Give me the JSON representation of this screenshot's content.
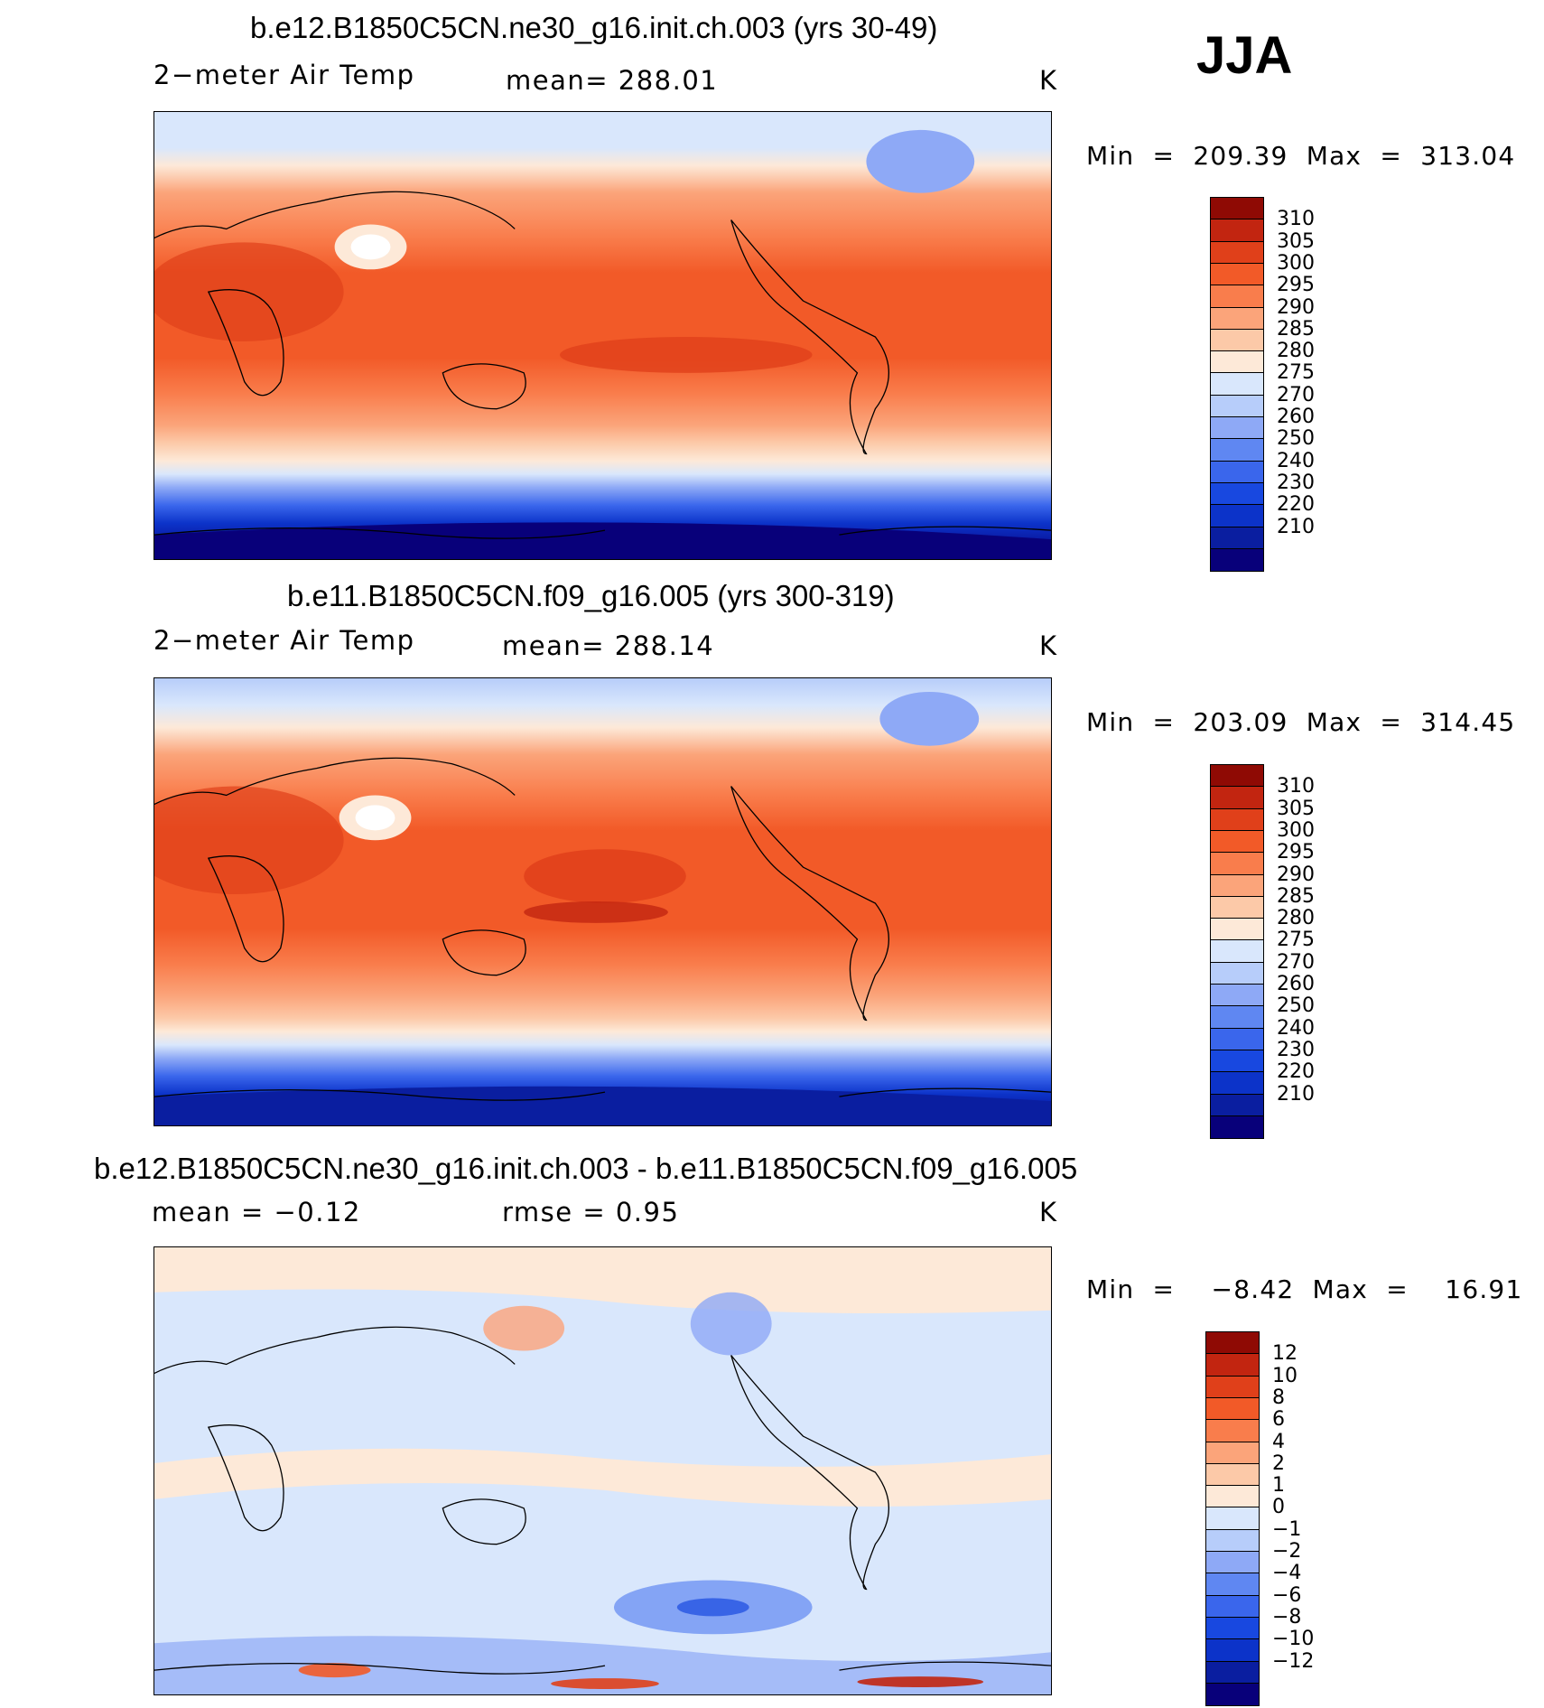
{
  "season_label": "JJA",
  "units": "K",
  "colors": {
    "temp_palette": [
      "#08007a",
      "#0a1ea0",
      "#0c33c9",
      "#1848e0",
      "#3a66ec",
      "#5f87f2",
      "#8ea9f6",
      "#b7cdfa",
      "#d9e7fc",
      "#fde9d8",
      "#fcc9a8",
      "#fba47a",
      "#f97d4c",
      "#f25a28",
      "#e0401a",
      "#c22510",
      "#8f0a04"
    ],
    "diff_palette": [
      "#08007a",
      "#0a1ea0",
      "#0c33c9",
      "#1848e0",
      "#3a66ec",
      "#5f87f2",
      "#8ea9f6",
      "#b7cdfa",
      "#d9e7fc",
      "#fde9d8",
      "#fcc9a8",
      "#fba47a",
      "#f97d4c",
      "#f25a28",
      "#e0401a",
      "#c22510",
      "#8f0a04"
    ]
  },
  "panels": [
    {
      "title": "b.e12.B1850C5CN.ne30_g16.init.ch.003 (yrs 30-49)",
      "left_label": "2−meter Air Temp",
      "center_label": "mean=  288.01",
      "right_label": "K",
      "minmax": "Min  =  209.39  Max  =  313.04",
      "colorbar_levels": [
        "310",
        "305",
        "300",
        "295",
        "290",
        "285",
        "280",
        "275",
        "270",
        "260",
        "250",
        "240",
        "230",
        "220",
        "210"
      ],
      "kind": "temp"
    },
    {
      "title": "b.e11.B1850C5CN.f09_g16.005 (yrs 300-319)",
      "left_label": "2−meter Air Temp",
      "center_label": "mean=  288.14",
      "right_label": "K",
      "minmax": "Min  =  203.09  Max  =  314.45",
      "colorbar_levels": [
        "310",
        "305",
        "300",
        "295",
        "290",
        "285",
        "280",
        "275",
        "270",
        "260",
        "250",
        "240",
        "230",
        "220",
        "210"
      ],
      "kind": "temp"
    },
    {
      "title": "b.e12.B1850C5CN.ne30_g16.init.ch.003 - b.e11.B1850C5CN.f09_g16.005",
      "left_label": "mean  =    −0.12",
      "center_label": "rmse  =     0.95",
      "right_label": "K",
      "minmax": "Min  =    −8.42  Max  =    16.91",
      "colorbar_levels": [
        "12",
        "10",
        "8",
        "6",
        "4",
        "2",
        "1",
        "0",
        "−1",
        "−2",
        "−4",
        "−6",
        "−8",
        "−10",
        "−12"
      ],
      "kind": "diff"
    }
  ]
}
